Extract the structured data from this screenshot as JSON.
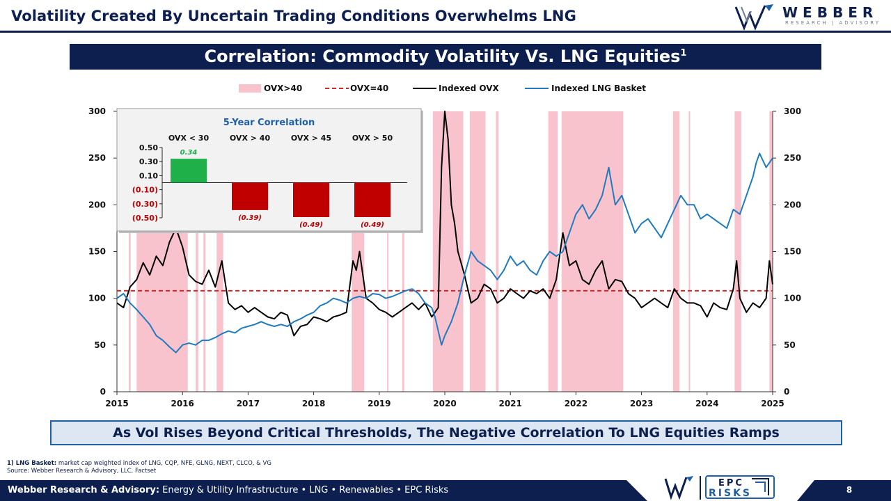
{
  "header": {
    "title": "Volatility Created By Uncertain Trading Conditions Overwhelms LNG",
    "logo_word": "WEBBER",
    "logo_sub": "RESEARCH | ADVISORY"
  },
  "banner": {
    "title": "Correlation: Commodity Volatility Vs. LNG Equities",
    "footnote_mark": "1"
  },
  "colors": {
    "navy": "#0c1f4f",
    "shading": "#f9c3cd",
    "threshold": "#d42626",
    "ovx": "#000000",
    "lng": "#1f7ac0",
    "positive": "#1fb04a",
    "negative": "#c00000"
  },
  "chart_data": [
    {
      "type": "line",
      "legend": [
        "OVX>40",
        "OVX=40",
        "Indexed OVX",
        "Indexed LNG Basket"
      ],
      "legend_position": "top-center",
      "x_ticks": [
        "2015",
        "2016",
        "2017",
        "2018",
        "2019",
        "2020",
        "2021",
        "2022",
        "2023",
        "2024",
        "2025"
      ],
      "y_ticks": [
        "0",
        "50",
        "100",
        "150",
        "200",
        "250",
        "300"
      ],
      "ylim": [
        0,
        300
      ],
      "y2lim": [
        0,
        300
      ],
      "threshold_line": {
        "name": "OVX=40",
        "value": 108
      },
      "shaded_periods": [
        [
          2015.18,
          2015.21
        ],
        [
          2015.3,
          2016.08
        ],
        [
          2016.2,
          2016.24
        ],
        [
          2016.32,
          2016.35
        ],
        [
          2016.52,
          2016.62
        ],
        [
          2018.58,
          2018.77
        ],
        [
          2019.12,
          2019.14
        ],
        [
          2019.35,
          2019.38
        ],
        [
          2019.82,
          2020.28
        ],
        [
          2020.38,
          2020.62
        ],
        [
          2020.78,
          2020.82
        ],
        [
          2021.58,
          2021.72
        ],
        [
          2021.78,
          2022.72
        ],
        [
          2023.48,
          2023.58
        ],
        [
          2023.72,
          2023.74
        ],
        [
          2024.42,
          2024.52
        ],
        [
          2024.95,
          2025.0
        ]
      ],
      "series": [
        {
          "name": "Indexed OVX",
          "x": [
            2015.0,
            2015.1,
            2015.2,
            2015.3,
            2015.4,
            2015.5,
            2015.6,
            2015.7,
            2015.8,
            2015.9,
            2016.0,
            2016.1,
            2016.2,
            2016.3,
            2016.4,
            2016.5,
            2016.6,
            2016.7,
            2016.8,
            2016.9,
            2017.0,
            2017.1,
            2017.2,
            2017.3,
            2017.4,
            2017.5,
            2017.6,
            2017.7,
            2017.8,
            2017.9,
            2018.0,
            2018.1,
            2018.2,
            2018.3,
            2018.4,
            2018.5,
            2018.6,
            2018.65,
            2018.7,
            2018.8,
            2018.9,
            2019.0,
            2019.1,
            2019.2,
            2019.3,
            2019.4,
            2019.5,
            2019.6,
            2019.7,
            2019.8,
            2019.85,
            2019.9,
            2019.95,
            2020.0,
            2020.05,
            2020.1,
            2020.15,
            2020.2,
            2020.3,
            2020.4,
            2020.5,
            2020.6,
            2020.7,
            2020.8,
            2020.9,
            2021.0,
            2021.1,
            2021.2,
            2021.3,
            2021.4,
            2021.5,
            2021.6,
            2021.7,
            2021.8,
            2021.9,
            2022.0,
            2022.1,
            2022.2,
            2022.3,
            2022.4,
            2022.5,
            2022.6,
            2022.7,
            2022.8,
            2022.9,
            2023.0,
            2023.1,
            2023.2,
            2023.3,
            2023.4,
            2023.5,
            2023.6,
            2023.7,
            2023.8,
            2023.9,
            2024.0,
            2024.1,
            2024.2,
            2024.3,
            2024.4,
            2024.45,
            2024.5,
            2024.6,
            2024.7,
            2024.8,
            2024.9,
            2024.95,
            2025.0
          ],
          "values": [
            95,
            90,
            112,
            120,
            138,
            125,
            145,
            135,
            160,
            175,
            155,
            125,
            118,
            115,
            130,
            112,
            140,
            95,
            88,
            92,
            85,
            90,
            85,
            80,
            78,
            85,
            82,
            60,
            70,
            72,
            80,
            78,
            75,
            80,
            82,
            85,
            140,
            130,
            150,
            100,
            95,
            88,
            85,
            80,
            85,
            90,
            95,
            88,
            95,
            80,
            85,
            90,
            240,
            300,
            270,
            200,
            180,
            150,
            125,
            95,
            100,
            115,
            110,
            95,
            100,
            110,
            105,
            100,
            108,
            105,
            110,
            100,
            120,
            170,
            135,
            140,
            120,
            115,
            130,
            140,
            110,
            120,
            118,
            105,
            100,
            90,
            95,
            100,
            95,
            90,
            110,
            100,
            95,
            95,
            92,
            80,
            95,
            90,
            88,
            110,
            140,
            100,
            85,
            95,
            90,
            100,
            140,
            115
          ]
        },
        {
          "name": "Indexed LNG Basket",
          "x": [
            2015.0,
            2015.1,
            2015.2,
            2015.3,
            2015.4,
            2015.5,
            2015.6,
            2015.7,
            2015.8,
            2015.9,
            2016.0,
            2016.1,
            2016.2,
            2016.3,
            2016.4,
            2016.5,
            2016.6,
            2016.7,
            2016.8,
            2016.9,
            2017.0,
            2017.1,
            2017.2,
            2017.3,
            2017.4,
            2017.5,
            2017.6,
            2017.7,
            2017.8,
            2017.9,
            2018.0,
            2018.1,
            2018.2,
            2018.3,
            2018.4,
            2018.5,
            2018.6,
            2018.7,
            2018.8,
            2018.9,
            2019.0,
            2019.1,
            2019.2,
            2019.3,
            2019.4,
            2019.5,
            2019.6,
            2019.7,
            2019.8,
            2019.85,
            2019.9,
            2019.95,
            2020.0,
            2020.1,
            2020.2,
            2020.3,
            2020.4,
            2020.5,
            2020.6,
            2020.7,
            2020.8,
            2020.9,
            2021.0,
            2021.1,
            2021.2,
            2021.3,
            2021.4,
            2021.5,
            2021.6,
            2021.7,
            2021.8,
            2021.9,
            2022.0,
            2022.1,
            2022.2,
            2022.3,
            2022.4,
            2022.5,
            2022.6,
            2022.7,
            2022.8,
            2022.9,
            2023.0,
            2023.1,
            2023.2,
            2023.3,
            2023.4,
            2023.5,
            2023.6,
            2023.7,
            2023.8,
            2023.9,
            2024.0,
            2024.1,
            2024.2,
            2024.3,
            2024.4,
            2024.5,
            2024.6,
            2024.7,
            2024.75,
            2024.8,
            2024.9,
            2025.0
          ],
          "values": [
            100,
            105,
            95,
            88,
            80,
            72,
            60,
            55,
            48,
            42,
            50,
            52,
            50,
            55,
            55,
            58,
            62,
            65,
            63,
            68,
            70,
            72,
            75,
            72,
            70,
            72,
            70,
            75,
            78,
            82,
            85,
            92,
            95,
            100,
            98,
            95,
            100,
            102,
            100,
            105,
            104,
            100,
            102,
            105,
            108,
            110,
            105,
            95,
            90,
            80,
            65,
            50,
            60,
            75,
            95,
            125,
            150,
            140,
            135,
            130,
            120,
            130,
            145,
            135,
            140,
            130,
            125,
            140,
            150,
            145,
            150,
            170,
            190,
            200,
            185,
            195,
            210,
            240,
            200,
            210,
            190,
            170,
            180,
            185,
            175,
            165,
            180,
            195,
            210,
            200,
            200,
            185,
            190,
            185,
            180,
            175,
            195,
            190,
            210,
            230,
            245,
            255,
            240,
            250
          ]
        }
      ]
    },
    {
      "type": "bar",
      "title": "5-Year Correlation",
      "categories": [
        "OVX < 30",
        "OVX > 40",
        "OVX > 45",
        "OVX > 50"
      ],
      "values": [
        0.34,
        -0.39,
        -0.49,
        -0.49
      ],
      "labels": [
        "0.34",
        "(0.39)",
        "(0.49)",
        "(0.49)"
      ],
      "y_ticks": [
        "0.50",
        "0.30",
        "0.10",
        "(0.10)",
        "(0.30)",
        "(0.50)"
      ],
      "ylim": [
        -0.5,
        0.5
      ]
    }
  ],
  "callout": "As Vol Rises Beyond Critical Thresholds, The Negative Correlation To LNG Equities Ramps",
  "footnote": {
    "mark": "1) LNG Basket:",
    "text": " market cap weighted index of LNG, CQP, NFE, GLNG, NEXT, CLCO, & VG",
    "source": "Source: Webber Research & Advisory, LLC, Factset"
  },
  "footer": {
    "company": "Webber Research & Advisory:",
    "tagline": " Energy & Utility Infrastructure • LNG • Renewables • EPC Risks",
    "epc_top": "EPC",
    "epc_bottom": "RISKS",
    "page": "8"
  }
}
